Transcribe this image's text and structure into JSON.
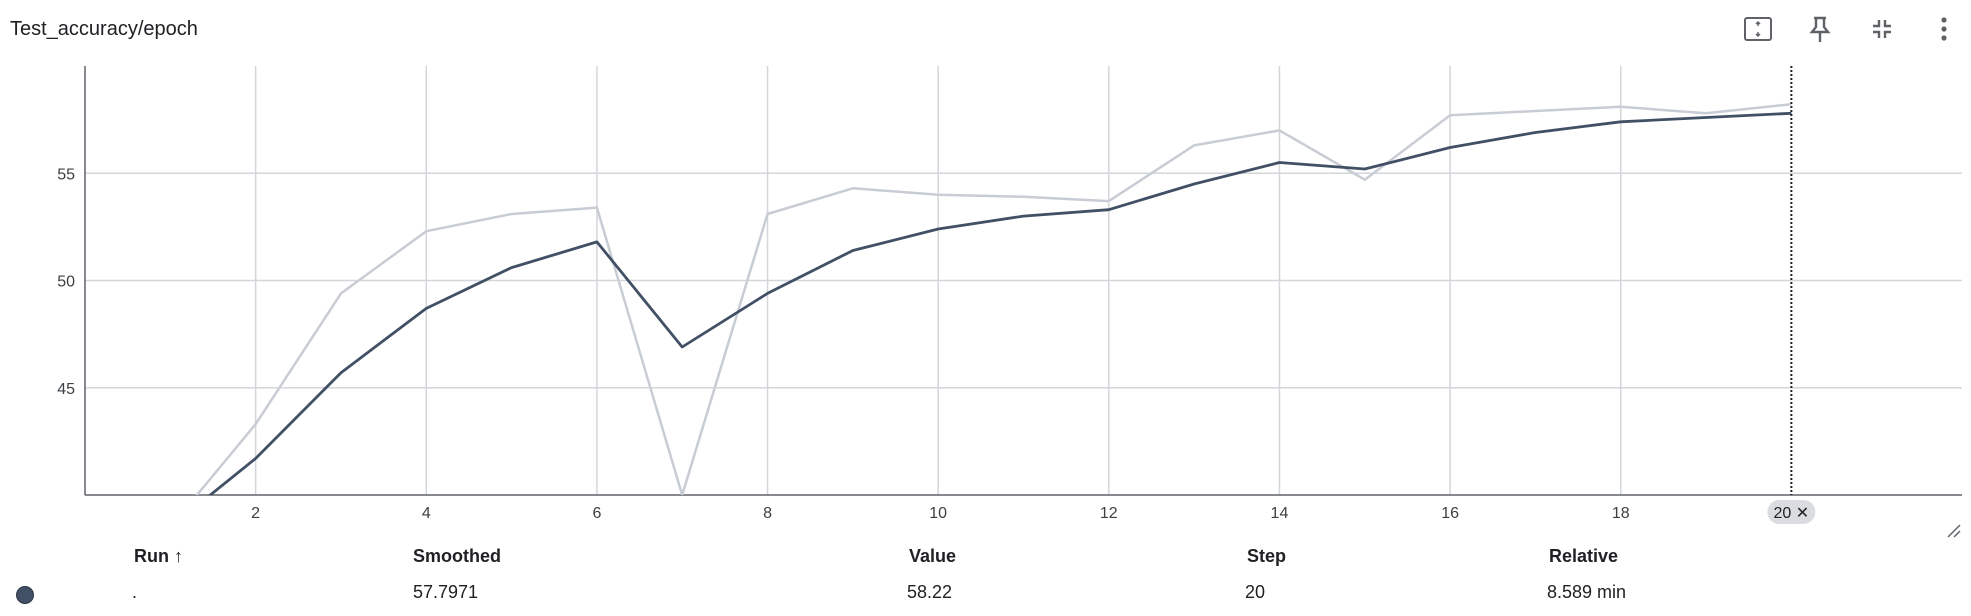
{
  "card": {
    "title": "Test_accuracy/epoch",
    "toolbar": [
      {
        "name": "fit-domain-icon",
        "label": ""
      },
      {
        "name": "pin-icon",
        "label": ""
      },
      {
        "name": "collapse-icon",
        "label": ""
      },
      {
        "name": "more-vert-icon",
        "label": ""
      }
    ]
  },
  "colors": {
    "smoothed": "#425066",
    "raw": "#c8ccd4",
    "grid": "#d3d6da",
    "axis": "#5f6368",
    "badge": "#dadce0"
  },
  "chart_data": {
    "type": "line",
    "x": [
      1,
      2,
      3,
      4,
      5,
      6,
      7,
      8,
      9,
      10,
      11,
      12,
      13,
      14,
      15,
      16,
      17,
      18,
      19,
      20
    ],
    "series": [
      {
        "values": [
          38.5,
          43.3,
          49.4,
          52.3,
          53.1,
          53.4,
          40.0,
          53.1,
          54.3,
          54.0,
          53.9,
          53.7,
          56.3,
          57.0,
          54.7,
          57.7,
          57.9,
          58.1,
          57.8,
          58.22
        ]
      },
      {
        "values": [
          38.5,
          41.7,
          45.7,
          48.7,
          50.6,
          51.8,
          46.9,
          49.4,
          51.4,
          52.4,
          53.0,
          53.3,
          54.5,
          55.5,
          55.2,
          56.2,
          56.9,
          57.4,
          57.6,
          57.7971
        ]
      }
    ],
    "xlim": [
      0,
      22
    ],
    "ylim": [
      40,
      60
    ],
    "xticks": [
      "2",
      "4",
      "6",
      "8",
      "10",
      "12",
      "14",
      "16",
      "18"
    ],
    "xtick_values": [
      2,
      4,
      6,
      8,
      10,
      12,
      14,
      16,
      18
    ],
    "yticks": [
      "45",
      "50",
      "55"
    ],
    "ytick_values": [
      45,
      50,
      55
    ],
    "grid": true,
    "selected_step": 20,
    "selected_label": "20 ✕"
  },
  "table": {
    "headers": {
      "run": "Run ↑",
      "smoothed": "Smoothed",
      "value": "Value",
      "step": "Step",
      "relative": "Relative"
    },
    "rows": [
      {
        "run": ".",
        "smoothed": "57.7971",
        "value": "58.22",
        "step": "20",
        "relative": "8.589 min"
      }
    ]
  }
}
